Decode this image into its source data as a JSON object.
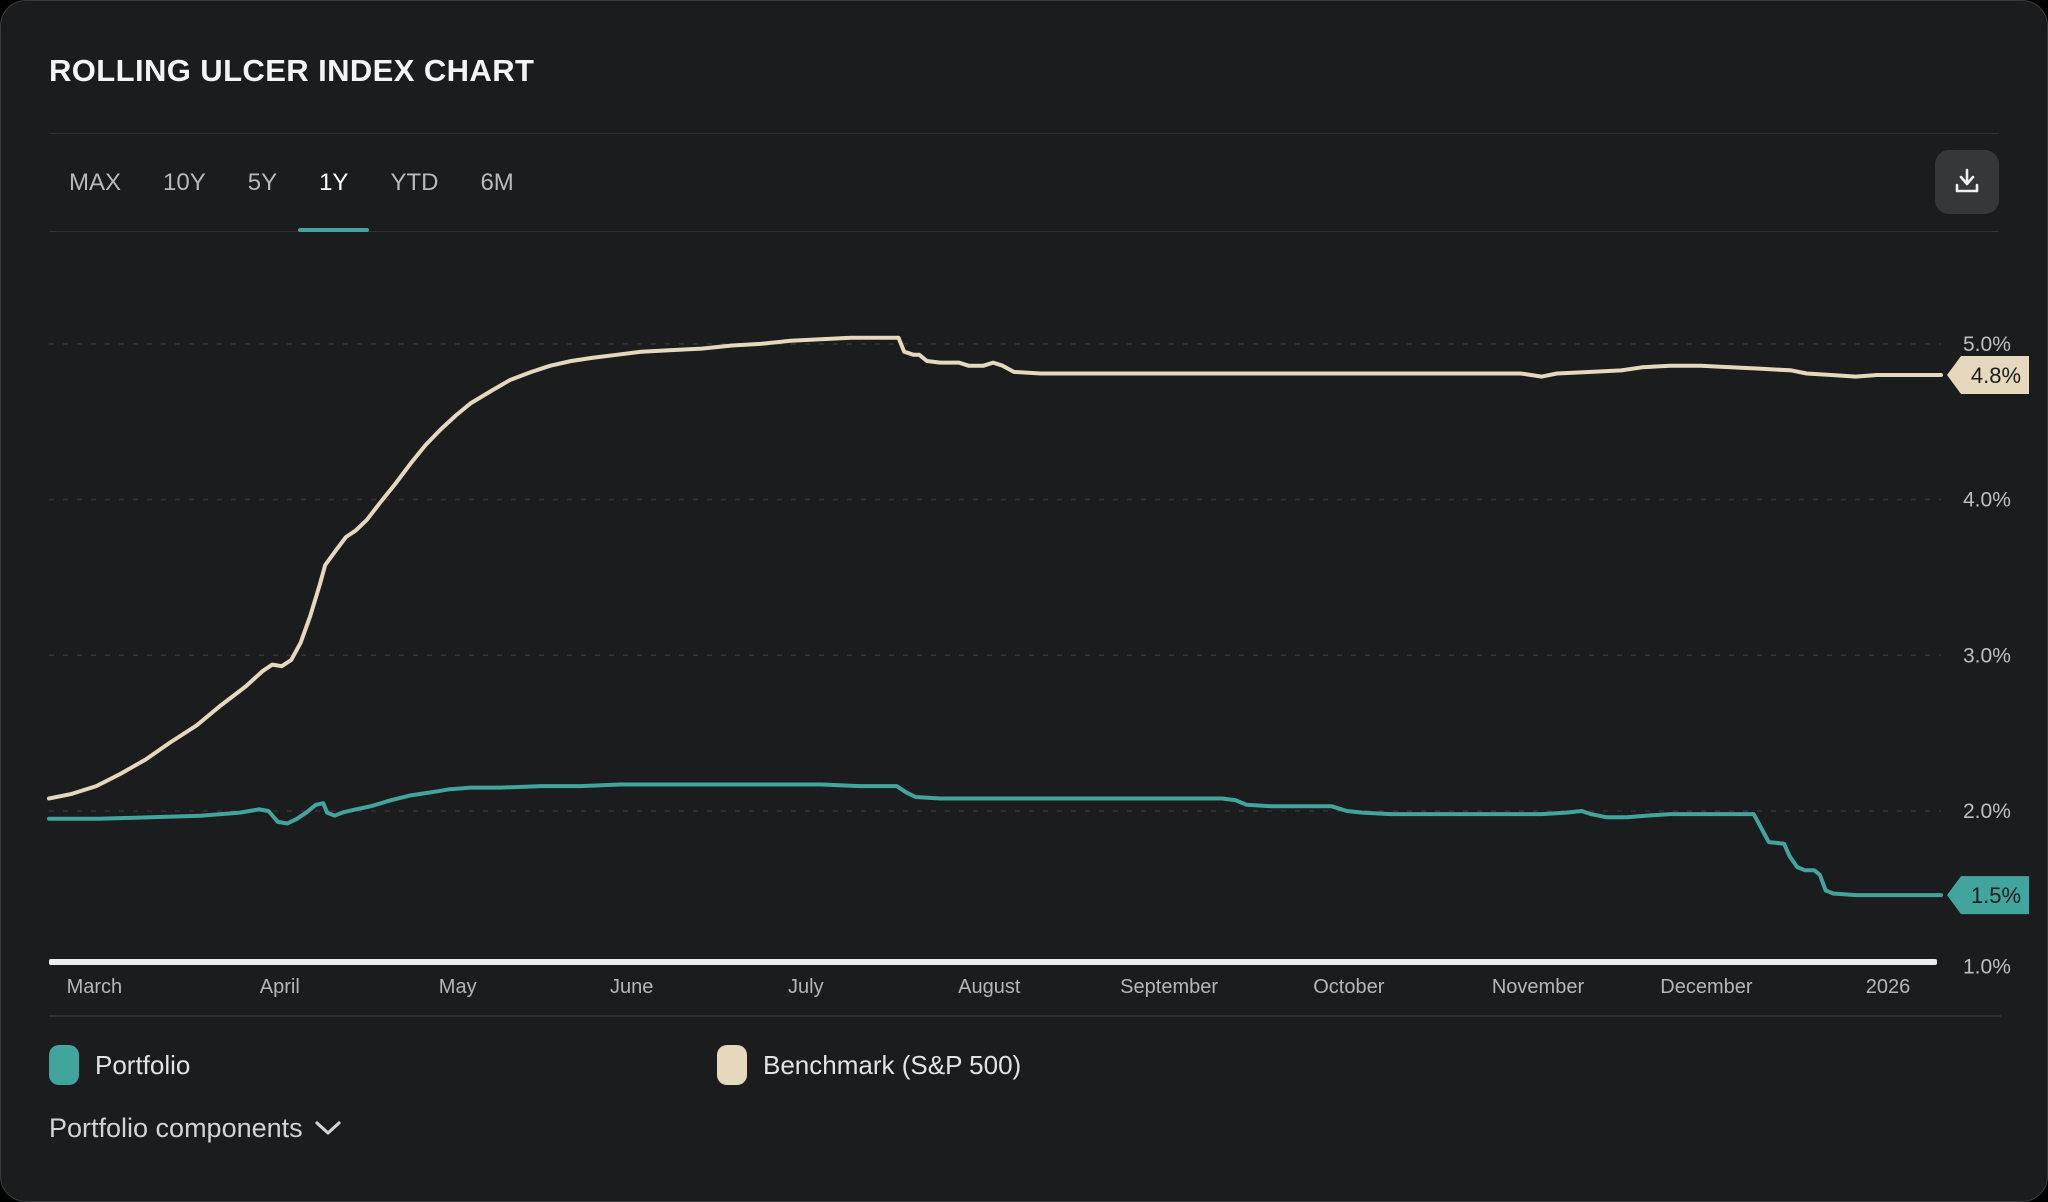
{
  "header": {
    "title": "ROLLING ULCER INDEX CHART"
  },
  "tabs": {
    "items": [
      {
        "label": "MAX",
        "active": false
      },
      {
        "label": "10Y",
        "active": false
      },
      {
        "label": "5Y",
        "active": false
      },
      {
        "label": "1Y",
        "active": true
      },
      {
        "label": "YTD",
        "active": false
      },
      {
        "label": "6M",
        "active": false
      }
    ]
  },
  "icons": {
    "download": "download-icon",
    "chevron_down": "chevron-down-icon"
  },
  "colors": {
    "accent": "#42a59d",
    "benchmark": "#e6d8bc",
    "card_bg": "#1b1c1d",
    "grid": "#313335",
    "axis_line": "#ededed"
  },
  "chart_data": {
    "type": "line",
    "title": "Rolling Ulcer Index",
    "unit": "%",
    "grid": "horizontal-dashed",
    "legend_position": "bottom",
    "ylim": [
      1.0,
      5.7
    ],
    "y_axis": {
      "ticks": [
        {
          "value": 5.0,
          "label": "5.0%"
        },
        {
          "value": 4.0,
          "label": "4.0%"
        },
        {
          "value": 3.0,
          "label": "3.0%"
        },
        {
          "value": 2.0,
          "label": "2.0%"
        },
        {
          "value": 1.0,
          "label": "1.0%"
        }
      ],
      "axis_line_at": 1.0
    },
    "x_axis": {
      "ticks": [
        {
          "f": 0.024,
          "label": "March"
        },
        {
          "f": 0.122,
          "label": "April"
        },
        {
          "f": 0.216,
          "label": "May"
        },
        {
          "f": 0.308,
          "label": "June"
        },
        {
          "f": 0.4,
          "label": "July"
        },
        {
          "f": 0.497,
          "label": "August"
        },
        {
          "f": 0.592,
          "label": "September"
        },
        {
          "f": 0.687,
          "label": "October"
        },
        {
          "f": 0.787,
          "label": "November"
        },
        {
          "f": 0.876,
          "label": "December"
        },
        {
          "f": 0.972,
          "label": "2026"
        }
      ]
    },
    "series": [
      {
        "id": "benchmark",
        "name": "Benchmark (S&P 500)",
        "color": "#e6d8bc",
        "end_label": "4.8%",
        "end_value": 4.8,
        "points": [
          [
            0,
            2.08
          ],
          [
            0.012,
            2.11
          ],
          [
            0.025,
            2.16
          ],
          [
            0.038,
            2.24
          ],
          [
            0.051,
            2.33
          ],
          [
            0.064,
            2.44
          ],
          [
            0.078,
            2.55
          ],
          [
            0.091,
            2.68
          ],
          [
            0.104,
            2.8
          ],
          [
            0.113,
            2.9
          ],
          [
            0.118,
            2.94
          ],
          [
            0.123,
            2.93
          ],
          [
            0.128,
            2.97
          ],
          [
            0.133,
            3.08
          ],
          [
            0.138,
            3.25
          ],
          [
            0.143,
            3.45
          ],
          [
            0.146,
            3.58
          ],
          [
            0.152,
            3.68
          ],
          [
            0.157,
            3.76
          ],
          [
            0.162,
            3.8
          ],
          [
            0.168,
            3.87
          ],
          [
            0.175,
            3.98
          ],
          [
            0.183,
            4.1
          ],
          [
            0.191,
            4.23
          ],
          [
            0.199,
            4.35
          ],
          [
            0.207,
            4.45
          ],
          [
            0.215,
            4.54
          ],
          [
            0.223,
            4.62
          ],
          [
            0.234,
            4.7
          ],
          [
            0.244,
            4.77
          ],
          [
            0.255,
            4.82
          ],
          [
            0.265,
            4.86
          ],
          [
            0.276,
            4.89
          ],
          [
            0.287,
            4.91
          ],
          [
            0.3,
            4.93
          ],
          [
            0.313,
            4.95
          ],
          [
            0.329,
            4.96
          ],
          [
            0.345,
            4.97
          ],
          [
            0.361,
            4.99
          ],
          [
            0.376,
            5.0
          ],
          [
            0.392,
            5.02
          ],
          [
            0.408,
            5.03
          ],
          [
            0.424,
            5.04
          ],
          [
            0.449,
            5.04
          ],
          [
            0.452,
            4.95
          ],
          [
            0.457,
            4.93
          ],
          [
            0.46,
            4.93
          ],
          [
            0.464,
            4.89
          ],
          [
            0.471,
            4.88
          ],
          [
            0.481,
            4.88
          ],
          [
            0.486,
            4.86
          ],
          [
            0.494,
            4.86
          ],
          [
            0.499,
            4.88
          ],
          [
            0.504,
            4.86
          ],
          [
            0.51,
            4.82
          ],
          [
            0.524,
            4.81
          ],
          [
            0.546,
            4.81
          ],
          [
            0.567,
            4.81
          ],
          [
            0.588,
            4.81
          ],
          [
            0.609,
            4.81
          ],
          [
            0.63,
            4.81
          ],
          [
            0.651,
            4.81
          ],
          [
            0.672,
            4.81
          ],
          [
            0.694,
            4.81
          ],
          [
            0.715,
            4.81
          ],
          [
            0.736,
            4.81
          ],
          [
            0.757,
            4.81
          ],
          [
            0.778,
            4.81
          ],
          [
            0.789,
            4.79
          ],
          [
            0.797,
            4.81
          ],
          [
            0.815,
            4.82
          ],
          [
            0.831,
            4.83
          ],
          [
            0.842,
            4.85
          ],
          [
            0.857,
            4.86
          ],
          [
            0.873,
            4.86
          ],
          [
            0.889,
            4.85
          ],
          [
            0.905,
            4.84
          ],
          [
            0.921,
            4.83
          ],
          [
            0.929,
            4.81
          ],
          [
            0.942,
            4.8
          ],
          [
            0.955,
            4.79
          ],
          [
            0.966,
            4.8
          ],
          [
            0.979,
            4.8
          ],
          [
            0.99,
            4.8
          ],
          [
            1,
            4.8
          ]
        ]
      },
      {
        "id": "portfolio",
        "name": "Portfolio",
        "color": "#42a59d",
        "end_label": "1.5%",
        "end_value": 1.5,
        "points": [
          [
            0,
            1.95
          ],
          [
            0.027,
            1.95
          ],
          [
            0.054,
            1.96
          ],
          [
            0.08,
            1.97
          ],
          [
            0.101,
            1.99
          ],
          [
            0.111,
            2.01
          ],
          [
            0.116,
            2.0
          ],
          [
            0.121,
            1.93
          ],
          [
            0.126,
            1.92
          ],
          [
            0.131,
            1.95
          ],
          [
            0.136,
            1.99
          ],
          [
            0.141,
            2.04
          ],
          [
            0.145,
            2.05
          ],
          [
            0.147,
            1.99
          ],
          [
            0.151,
            1.97
          ],
          [
            0.155,
            1.99
          ],
          [
            0.162,
            2.01
          ],
          [
            0.17,
            2.03
          ],
          [
            0.181,
            2.07
          ],
          [
            0.191,
            2.1
          ],
          [
            0.202,
            2.12
          ],
          [
            0.212,
            2.14
          ],
          [
            0.223,
            2.15
          ],
          [
            0.239,
            2.15
          ],
          [
            0.26,
            2.16
          ],
          [
            0.281,
            2.16
          ],
          [
            0.302,
            2.17
          ],
          [
            0.323,
            2.17
          ],
          [
            0.345,
            2.17
          ],
          [
            0.366,
            2.17
          ],
          [
            0.387,
            2.17
          ],
          [
            0.408,
            2.17
          ],
          [
            0.429,
            2.16
          ],
          [
            0.448,
            2.16
          ],
          [
            0.453,
            2.12
          ],
          [
            0.458,
            2.09
          ],
          [
            0.471,
            2.08
          ],
          [
            0.493,
            2.08
          ],
          [
            0.514,
            2.08
          ],
          [
            0.535,
            2.08
          ],
          [
            0.556,
            2.08
          ],
          [
            0.577,
            2.08
          ],
          [
            0.598,
            2.08
          ],
          [
            0.62,
            2.08
          ],
          [
            0.627,
            2.07
          ],
          [
            0.633,
            2.04
          ],
          [
            0.646,
            2.03
          ],
          [
            0.662,
            2.03
          ],
          [
            0.678,
            2.03
          ],
          [
            0.686,
            2.0
          ],
          [
            0.694,
            1.99
          ],
          [
            0.709,
            1.98
          ],
          [
            0.725,
            1.98
          ],
          [
            0.741,
            1.98
          ],
          [
            0.757,
            1.98
          ],
          [
            0.773,
            1.98
          ],
          [
            0.789,
            1.98
          ],
          [
            0.802,
            1.99
          ],
          [
            0.81,
            2.0
          ],
          [
            0.815,
            1.98
          ],
          [
            0.823,
            1.96
          ],
          [
            0.834,
            1.96
          ],
          [
            0.844,
            1.97
          ],
          [
            0.857,
            1.98
          ],
          [
            0.873,
            1.98
          ],
          [
            0.889,
            1.98
          ],
          [
            0.901,
            1.98
          ],
          [
            0.909,
            1.8
          ],
          [
            0.917,
            1.79
          ],
          [
            0.92,
            1.71
          ],
          [
            0.924,
            1.64
          ],
          [
            0.928,
            1.62
          ],
          [
            0.933,
            1.62
          ],
          [
            0.936,
            1.59
          ],
          [
            0.939,
            1.49
          ],
          [
            0.943,
            1.47
          ],
          [
            0.955,
            1.46
          ],
          [
            0.97,
            1.46
          ],
          [
            0.985,
            1.46
          ],
          [
            1,
            1.46
          ]
        ]
      }
    ]
  },
  "legend": {
    "items": [
      {
        "label": "Portfolio",
        "color": "#42a59d"
      },
      {
        "label": "Benchmark (S&P 500)",
        "color": "#e6d8bc"
      }
    ]
  },
  "footer": {
    "components_label": "Portfolio components"
  }
}
